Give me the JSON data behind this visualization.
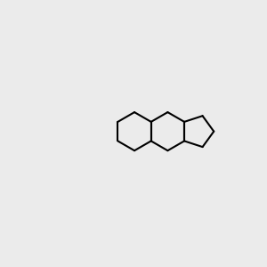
{
  "background_color": "#ebebeb",
  "bond_color": "#000000",
  "atom_colors": {
    "O": "#ff0000",
    "N": "#0000ff",
    "F": "#cc00cc",
    "C": "#000000",
    "H": "#606060"
  },
  "title": "",
  "figsize": [
    3.0,
    3.0
  ],
  "dpi": 100
}
